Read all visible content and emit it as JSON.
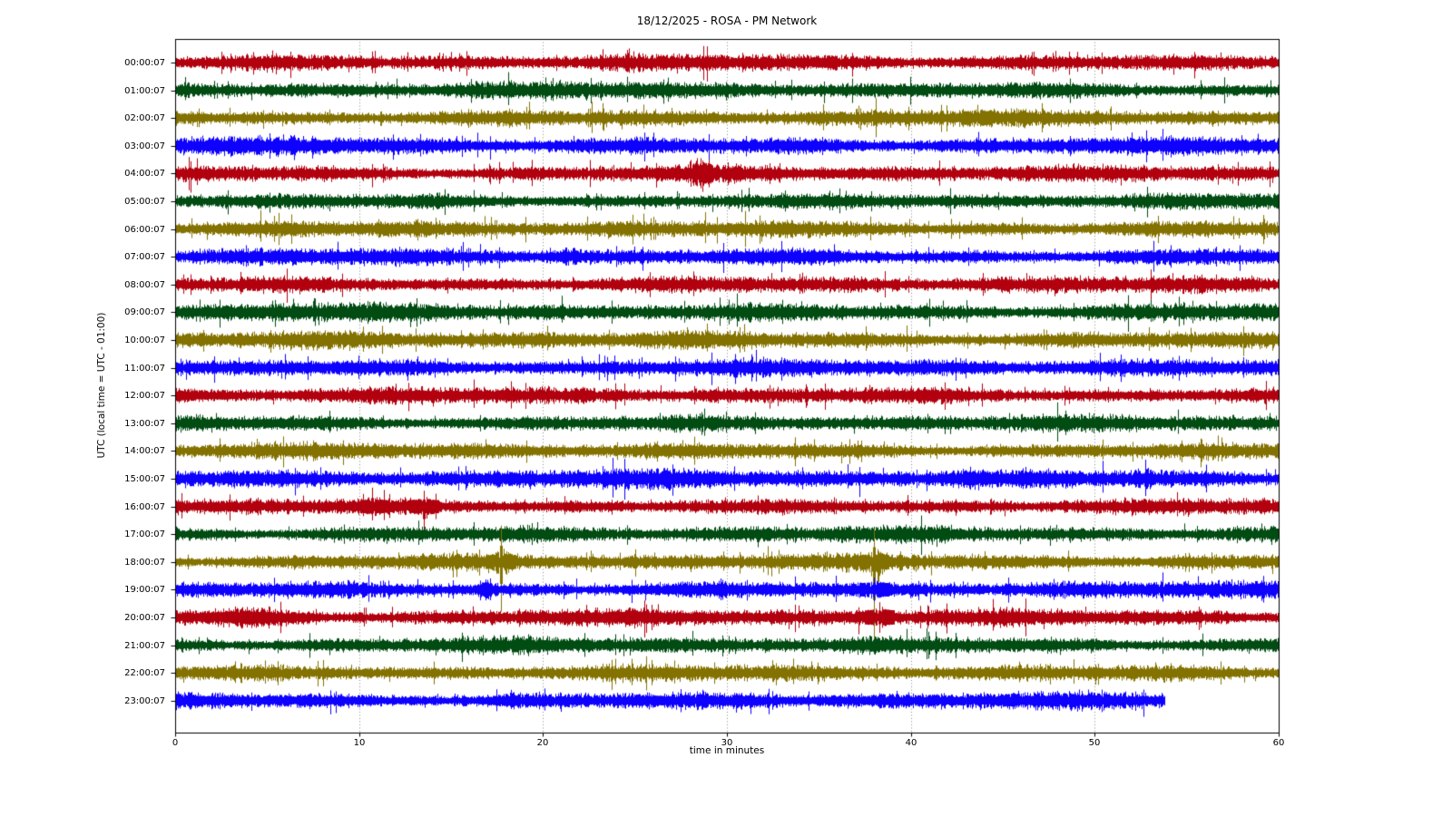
{
  "chart_data": {
    "type": "line",
    "subtype": "seismic-helicorder-dayplot",
    "title": "18/12/2025 - ROSA - PM Network",
    "xlabel": "time in minutes",
    "ylabel": "UTC (local time = UTC - 01:00)",
    "xlim": [
      0,
      60
    ],
    "xticks": [
      0,
      10,
      20,
      30,
      40,
      50,
      60
    ],
    "grid": {
      "vertical_dotted_minutes": [
        10,
        20,
        30,
        40,
        50
      ],
      "color": "#888888"
    },
    "trace_color_cycle": [
      "#B2000F",
      "#004C12",
      "#847200",
      "#0E01FF"
    ],
    "minutes_per_row": 60,
    "legend": "none",
    "rows": [
      {
        "label": "00:00:07",
        "color": "#B2000F",
        "amp": 1.0,
        "end_minute": 60,
        "events": []
      },
      {
        "label": "01:00:07",
        "color": "#004C12",
        "amp": 1.0,
        "end_minute": 60,
        "events": []
      },
      {
        "label": "02:00:07",
        "color": "#847200",
        "amp": 1.0,
        "end_minute": 60,
        "events": [
          {
            "type": "spike",
            "minute": 43.6,
            "up": 2.0,
            "down": 1.2
          }
        ]
      },
      {
        "label": "03:00:07",
        "color": "#0E01FF",
        "amp": 1.1,
        "end_minute": 60,
        "events": []
      },
      {
        "label": "04:00:07",
        "color": "#B2000F",
        "amp": 1.0,
        "end_minute": 60,
        "events": [
          {
            "type": "burst",
            "minute": 28.6,
            "amp": 1.7,
            "width_min": 0.9
          }
        ]
      },
      {
        "label": "05:00:07",
        "color": "#004C12",
        "amp": 0.95,
        "end_minute": 60,
        "events": []
      },
      {
        "label": "06:00:07",
        "color": "#847200",
        "amp": 1.0,
        "end_minute": 60,
        "events": []
      },
      {
        "label": "07:00:07",
        "color": "#0E01FF",
        "amp": 1.0,
        "end_minute": 60,
        "events": [
          {
            "type": "burst",
            "minute": 21.3,
            "amp": 1.45,
            "width_min": 0.8
          }
        ]
      },
      {
        "label": "08:00:07",
        "color": "#B2000F",
        "amp": 1.0,
        "end_minute": 60,
        "events": []
      },
      {
        "label": "09:00:07",
        "color": "#004C12",
        "amp": 1.1,
        "end_minute": 60,
        "events": []
      },
      {
        "label": "10:00:07",
        "color": "#847200",
        "amp": 1.05,
        "end_minute": 60,
        "events": []
      },
      {
        "label": "11:00:07",
        "color": "#0E01FF",
        "amp": 1.05,
        "end_minute": 60,
        "events": []
      },
      {
        "label": "12:00:07",
        "color": "#B2000F",
        "amp": 1.0,
        "end_minute": 60,
        "events": []
      },
      {
        "label": "13:00:07",
        "color": "#004C12",
        "amp": 1.0,
        "end_minute": 60,
        "events": []
      },
      {
        "label": "14:00:07",
        "color": "#847200",
        "amp": 1.0,
        "end_minute": 60,
        "events": []
      },
      {
        "label": "15:00:07",
        "color": "#0E01FF",
        "amp": 1.15,
        "end_minute": 60,
        "events": [
          {
            "type": "burst",
            "minute": 43.2,
            "amp": 1.4,
            "width_min": 1.2
          },
          {
            "type": "burst",
            "minute": 52.6,
            "amp": 1.35,
            "width_min": 1.0
          }
        ]
      },
      {
        "label": "16:00:07",
        "color": "#B2000F",
        "amp": 0.95,
        "end_minute": 60,
        "events": [
          {
            "type": "spike",
            "minute": 10.7,
            "up": 3.0,
            "down": 2.2
          },
          {
            "type": "spike",
            "minute": 13.5,
            "up": 2.5,
            "down": 4.5
          }
        ]
      },
      {
        "label": "17:00:07",
        "color": "#004C12",
        "amp": 1.0,
        "end_minute": 60,
        "events": []
      },
      {
        "label": "18:00:07",
        "color": "#847200",
        "amp": 1.0,
        "end_minute": 60,
        "events": [
          {
            "type": "spike",
            "minute": 17.7,
            "up": 5.5,
            "down": 7.5
          },
          {
            "type": "spike",
            "minute": 38.0,
            "up": 5.0,
            "down": 13.0
          }
        ]
      },
      {
        "label": "19:00:07",
        "color": "#0E01FF",
        "amp": 1.0,
        "end_minute": 60,
        "events": [
          {
            "type": "burst",
            "minute": 16.9,
            "amp": 2.4,
            "width_min": 0.5
          },
          {
            "type": "spike",
            "minute": 38.0,
            "up": 1.8,
            "down": 1.8
          }
        ]
      },
      {
        "label": "20:00:07",
        "color": "#B2000F",
        "amp": 1.05,
        "end_minute": 60,
        "events": [
          {
            "type": "burst",
            "minute": 4.0,
            "amp": 1.5,
            "width_min": 2.2
          },
          {
            "type": "spike",
            "minute": 38.3,
            "up": 2.2,
            "down": 2.2
          }
        ]
      },
      {
        "label": "21:00:07",
        "color": "#004C12",
        "amp": 1.0,
        "end_minute": 60,
        "events": []
      },
      {
        "label": "22:00:07",
        "color": "#847200",
        "amp": 1.0,
        "end_minute": 60,
        "events": []
      },
      {
        "label": "23:00:07",
        "color": "#0E01FF",
        "amp": 1.05,
        "end_minute": 53.8,
        "events": []
      }
    ]
  }
}
